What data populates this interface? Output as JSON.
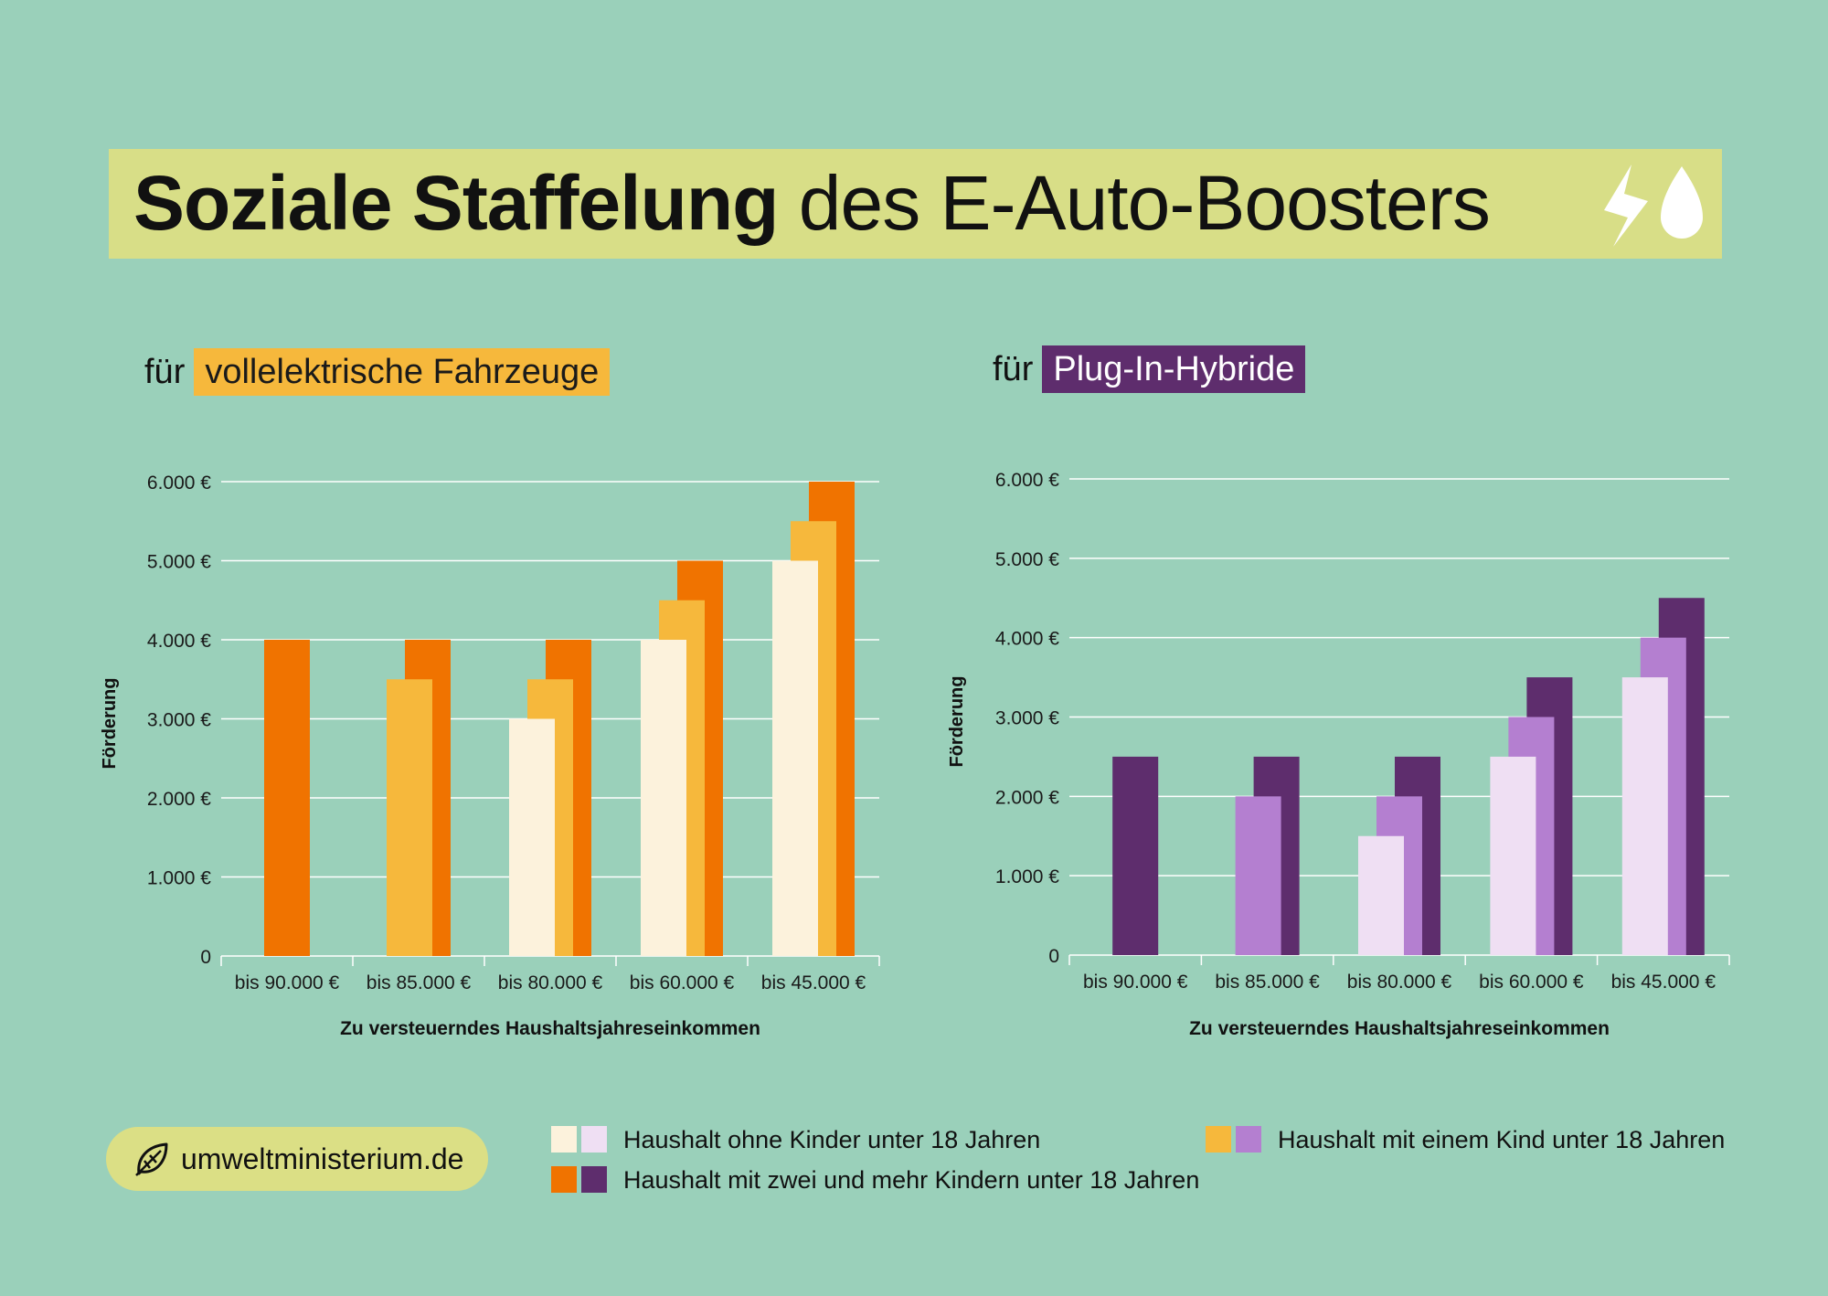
{
  "title": {
    "bold": "Soziale Staffelung",
    "regular": "des E-Auto-Boosters",
    "icons": [
      "lightning-icon",
      "drop-icon"
    ]
  },
  "subtitles": [
    {
      "prefix": "für",
      "highlight": "vollelektrische Fahrzeuge",
      "color": "#f6b83c"
    },
    {
      "prefix": "für",
      "highlight": "Plug-In-Hybride",
      "color": "#5e2d6d"
    }
  ],
  "chart_data": [
    {
      "type": "bar",
      "title": "für vollelektrische Fahrzeuge",
      "xlabel": "Zu versteuerndes Haushaltsjahreseinkommen",
      "ylabel": "Förderung",
      "ylim": [
        0,
        6000
      ],
      "yticks": [
        "0",
        "1.000 €",
        "2.000 €",
        "3.000 €",
        "4.000 €",
        "5.000 €",
        "6.000 €"
      ],
      "grid": true,
      "categories": [
        "bis 90.000 €",
        "bis 85.000 €",
        "bis 80.000 €",
        "bis 60.000 €",
        "bis  45.000 €"
      ],
      "series": [
        {
          "name": "Haushalt ohne Kinder unter 18 Jahren",
          "color": "#fcf2dc",
          "values": [
            null,
            null,
            3000,
            4000,
            5000
          ]
        },
        {
          "name": "Haushalt mit einem Kind unter 18 Jahren",
          "color": "#f6b83c",
          "values": [
            null,
            3500,
            3500,
            4500,
            5500
          ]
        },
        {
          "name": "Haushalt mit zwei und mehr Kindern unter 18 Jahren",
          "color": "#f07300",
          "values": [
            4000,
            4000,
            4000,
            5000,
            6000
          ]
        }
      ]
    },
    {
      "type": "bar",
      "title": "für Plug-In-Hybride",
      "xlabel": "Zu versteuerndes Haushaltsjahreseinkommen",
      "ylabel": "Förderung",
      "ylim": [
        0,
        6000
      ],
      "yticks": [
        "0",
        "1.000 €",
        "2.000 €",
        "3.000 €",
        "4.000 €",
        "5.000 €",
        "6.000 €"
      ],
      "grid": true,
      "categories": [
        "bis 90.000 €",
        "bis 85.000 €",
        "bis 80.000 €",
        "bis 60.000 €",
        "bis  45.000 €"
      ],
      "series": [
        {
          "name": "Haushalt ohne Kinder unter 18 Jahren",
          "color": "#efdff3",
          "values": [
            null,
            null,
            1500,
            2500,
            3500
          ]
        },
        {
          "name": "Haushalt mit einem Kind unter 18 Jahren",
          "color": "#b47fd0",
          "values": [
            null,
            2000,
            2000,
            3000,
            4000
          ]
        },
        {
          "name": "Haushalt mit zwei und mehr Kindern unter 18 Jahren",
          "color": "#5e2d6d",
          "values": [
            2500,
            2500,
            2500,
            3500,
            4500
          ]
        }
      ]
    }
  ],
  "legend": [
    {
      "label": "Haushalt ohne Kinder unter 18 Jahren",
      "colors": [
        "#fcf2dc",
        "#efdff3"
      ]
    },
    {
      "label": "Haushalt mit einem Kind unter 18 Jahren",
      "colors": [
        "#f6b83c",
        "#b47fd0"
      ]
    },
    {
      "label": "Haushalt mit zwei und mehr Kindern unter 18 Jahren",
      "colors": [
        "#f07300",
        "#5e2d6d"
      ]
    }
  ],
  "footer": {
    "website": "umweltministerium.de",
    "icon": "leaf-icon"
  },
  "colors": {
    "background": "#9ad0ba",
    "banner": "#d8de87"
  }
}
